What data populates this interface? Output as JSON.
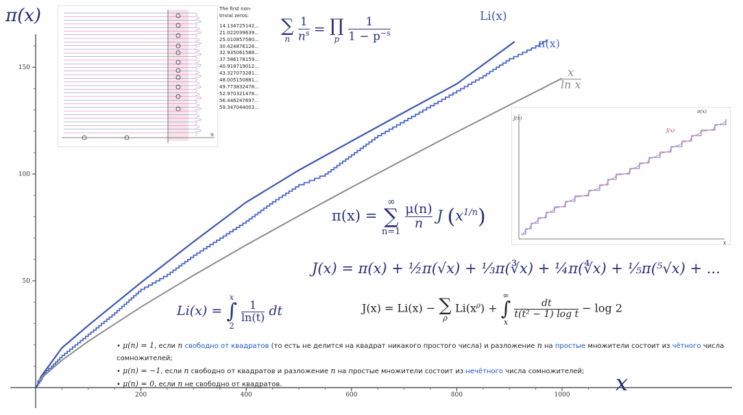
{
  "chart_data": {
    "type": "line",
    "title": "",
    "xlabel": "x",
    "ylabel": "π(x)",
    "xlim": [
      0,
      1085
    ],
    "ylim": [
      -2,
      168
    ],
    "x_ticks": [
      200,
      400,
      600,
      800,
      1000
    ],
    "y_ticks": [
      50,
      100,
      150
    ],
    "series": [
      {
        "name": "Li(x)",
        "color": "#3a55b0",
        "points": [
          [
            1,
            0
          ],
          [
            10,
            5.1
          ],
          [
            50,
            18.6
          ],
          [
            100,
            29.1
          ],
          [
            200,
            49.2
          ],
          [
            300,
            68.3
          ],
          [
            400,
            86.8
          ],
          [
            500,
            101.8
          ],
          [
            600,
            115.4
          ],
          [
            700,
            128.9
          ],
          [
            800,
            142.2
          ],
          [
            910,
            162
          ]
        ]
      },
      {
        "name": "π(x)",
        "color": "#4a66c8",
        "points": [
          [
            2,
            1
          ],
          [
            10,
            4
          ],
          [
            20,
            8
          ],
          [
            30,
            10
          ],
          [
            50,
            15
          ],
          [
            100,
            25
          ],
          [
            150,
            35
          ],
          [
            200,
            46
          ],
          [
            250,
            53
          ],
          [
            300,
            62
          ],
          [
            350,
            70
          ],
          [
            400,
            78
          ],
          [
            450,
            87
          ],
          [
            500,
            95
          ],
          [
            550,
            100
          ],
          [
            600,
            109
          ],
          [
            650,
            118
          ],
          [
            700,
            125
          ],
          [
            750,
            132
          ],
          [
            800,
            139
          ],
          [
            850,
            146
          ],
          [
            900,
            154
          ],
          [
            950,
            160
          ],
          [
            970,
            163
          ]
        ]
      },
      {
        "name": "x / ln x",
        "color": "#8a8a8a",
        "points": [
          [
            3,
            2.73
          ],
          [
            10,
            4.34
          ],
          [
            50,
            12.78
          ],
          [
            100,
            21.71
          ],
          [
            200,
            37.75
          ],
          [
            300,
            52.6
          ],
          [
            400,
            66.76
          ],
          [
            500,
            80.46
          ],
          [
            600,
            93.8
          ],
          [
            700,
            106.8
          ],
          [
            800,
            119.7
          ],
          [
            900,
            132.3
          ],
          [
            1000,
            144.8
          ]
        ]
      }
    ],
    "annotations": {
      "li_label": "Li(x)",
      "pi_label": "π(x)",
      "xlnx_num": "x",
      "xlnx_den": "ln x"
    }
  },
  "formulas": {
    "euler_product": {
      "sum_sub": "n",
      "num": "1",
      "den": "n",
      "den_sup": "s",
      "eq": "=",
      "prod_sub": "p",
      "rhs_num": "1",
      "rhs_den": "1 − p",
      "rhs_den_sup": "−s"
    },
    "pi_from_j": {
      "lhs": "π(x) =",
      "sum_top": "∞",
      "sum_bot": "n=1",
      "num": "μ(n)",
      "den": "n",
      "rhs": "J",
      "arg": "x",
      "arg_sup": "1/n"
    },
    "j_def": "J(x) = π(x) + ½π(√x) + ⅓π(∛x) + ¼π(∜x) + ⅕π(⁵√x) + ...",
    "li_def": {
      "lhs": "Li(x) =",
      "int_top": "x",
      "int_bot": "2",
      "num": "1",
      "den": "ln(t)",
      "dt": "dt"
    },
    "j_explicit": {
      "lhs": "J(x) = Li(x) −",
      "sum_bot": "ρ",
      "term": "Li(x",
      "term_sup": "ρ",
      "term_end": ") +",
      "int_top": "∞",
      "int_bot": "x",
      "num": "dt",
      "den": "t(t² − 1) log t",
      "tail": "− log 2"
    }
  },
  "zeros_list": {
    "header_line1": "The first non-",
    "header_line2": "trivial zeros:",
    "values": [
      "14.134725142...",
      "21.022039639...",
      "25.010857580...",
      "30.424876126...",
      "32.935061588...",
      "37.586178159...",
      "40.918719012...",
      "43.327073281...",
      "48.005150881...",
      "49.773832478...",
      "52.970321478...",
      "56.446247697...",
      "59.347044003..."
    ]
  },
  "inset_j": {
    "ylabel": "J(x)",
    "xlabel": "x",
    "label_pi": "π(x)",
    "label_j": "J(x)",
    "color_pi": "#6a78c8",
    "color_j": "#c87a9a"
  },
  "inset_zeta": {
    "axis_label": "ℜ"
  },
  "bullets": [
    {
      "math": "μ(n) = 1",
      "t1": ", если ",
      "m2": "n",
      "link1": " свободно от квадратов",
      "t2": " (то есть не делится на квадрат никакого простого числа) и разложение ",
      "m3": "n",
      "t3": " на ",
      "link2": "простые",
      "t4": " множители состоит из ",
      "link3": "чётного",
      "t5": " числа сомножителей;"
    },
    {
      "math": "μ(n) = −1",
      "t1": ", если ",
      "m2": "n",
      "t2": " свободно от квадратов и разложение ",
      "m3": "n",
      "t3": " на простые множители состоит из ",
      "link1": "нечётного",
      "t4": " числа сомножителей;"
    },
    {
      "math": "μ(n) = 0",
      "t1": ", если ",
      "m2": "n",
      "t2": " не свободно от квадратов."
    }
  ]
}
